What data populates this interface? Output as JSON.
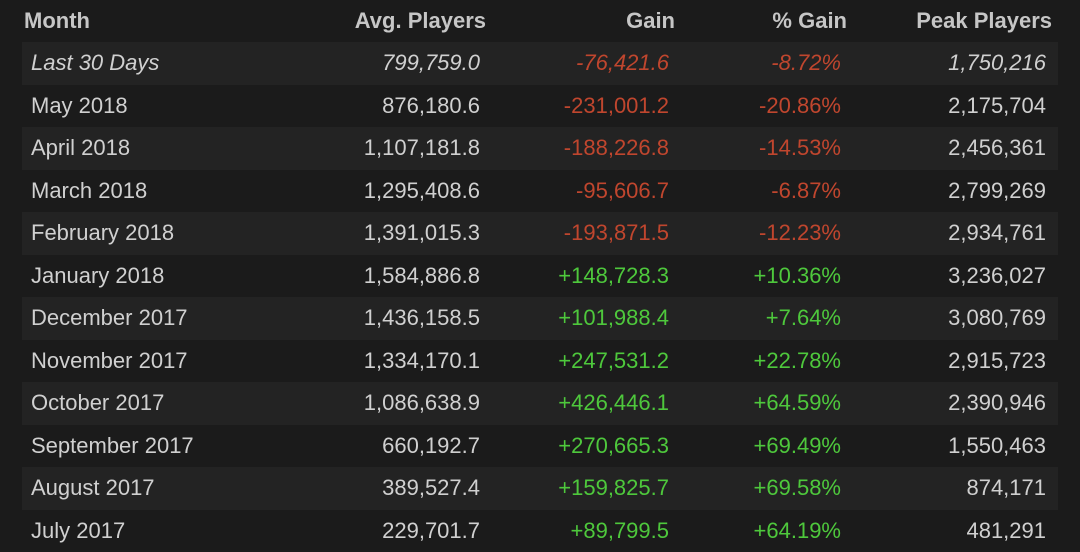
{
  "table": {
    "headers": {
      "month": "Month",
      "avg": "Avg. Players",
      "gain": "Gain",
      "pct": "% Gain",
      "peak": "Peak Players"
    },
    "rows": [
      {
        "month": "Last 30 Days",
        "avg": "799,759.0",
        "gain": "-76,421.6",
        "pct": "-8.72%",
        "peak": "1,750,216",
        "trend": "neg"
      },
      {
        "month": "May 2018",
        "avg": "876,180.6",
        "gain": "-231,001.2",
        "pct": "-20.86%",
        "peak": "2,175,704",
        "trend": "neg"
      },
      {
        "month": "April 2018",
        "avg": "1,107,181.8",
        "gain": "-188,226.8",
        "pct": "-14.53%",
        "peak": "2,456,361",
        "trend": "neg"
      },
      {
        "month": "March 2018",
        "avg": "1,295,408.6",
        "gain": "-95,606.7",
        "pct": "-6.87%",
        "peak": "2,799,269",
        "trend": "neg"
      },
      {
        "month": "February 2018",
        "avg": "1,391,015.3",
        "gain": "-193,871.5",
        "pct": "-12.23%",
        "peak": "2,934,761",
        "trend": "neg"
      },
      {
        "month": "January 2018",
        "avg": "1,584,886.8",
        "gain": "+148,728.3",
        "pct": "+10.36%",
        "peak": "3,236,027",
        "trend": "pos"
      },
      {
        "month": "December 2017",
        "avg": "1,436,158.5",
        "gain": "+101,988.4",
        "pct": "+7.64%",
        "peak": "3,080,769",
        "trend": "pos"
      },
      {
        "month": "November 2017",
        "avg": "1,334,170.1",
        "gain": "+247,531.2",
        "pct": "+22.78%",
        "peak": "2,915,723",
        "trend": "pos"
      },
      {
        "month": "October 2017",
        "avg": "1,086,638.9",
        "gain": "+426,446.1",
        "pct": "+64.59%",
        "peak": "2,390,946",
        "trend": "pos"
      },
      {
        "month": "September 2017",
        "avg": "660,192.7",
        "gain": "+270,665.3",
        "pct": "+69.49%",
        "peak": "1,550,463",
        "trend": "pos"
      },
      {
        "month": "August 2017",
        "avg": "389,527.4",
        "gain": "+159,825.7",
        "pct": "+69.58%",
        "peak": "874,171",
        "trend": "pos"
      },
      {
        "month": "July 2017",
        "avg": "229,701.7",
        "gain": "+89,799.5",
        "pct": "+64.19%",
        "peak": "481,291",
        "trend": "pos"
      }
    ]
  },
  "colors": {
    "background": "#1b1b1b",
    "row_alt": "#232323",
    "text": "#d0d0d0",
    "header_text": "#c6c6c6",
    "negative": "#c0462e",
    "positive": "#4ec83c"
  }
}
